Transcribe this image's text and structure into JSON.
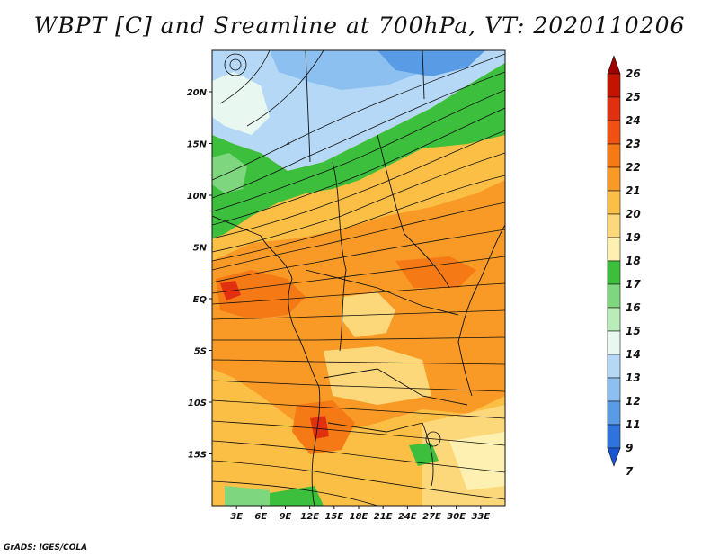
{
  "title": "WBPT [C] and Sreamline at 700hPa, VT: 2020110206",
  "credit": "GrADS: IGES/COLA",
  "map": {
    "lon_range": [
      0,
      36
    ],
    "lat_range": [
      -20,
      24
    ],
    "lon_ticks": [
      "3E",
      "6E",
      "9E",
      "12E",
      "15E",
      "18E",
      "21E",
      "24E",
      "27E",
      "30E",
      "33E"
    ],
    "lon_tick_values": [
      3,
      6,
      9,
      12,
      15,
      18,
      21,
      24,
      27,
      30,
      33
    ],
    "lat_ticks": [
      "20N",
      "15N",
      "10N",
      "5N",
      "EQ",
      "5S",
      "10S",
      "15S"
    ],
    "lat_tick_values": [
      20,
      15,
      10,
      5,
      0,
      -5,
      -10,
      -15
    ]
  },
  "colorbar": {
    "levels": [
      "26",
      "25",
      "24",
      "23",
      "22",
      "21",
      "20",
      "19",
      "18",
      "17",
      "16",
      "15",
      "14",
      "13",
      "12",
      "11",
      "9",
      "7"
    ],
    "colors": [
      "#a00000",
      "#c41400",
      "#e03010",
      "#f05010",
      "#f57a15",
      "#f89a25",
      "#fbbf45",
      "#fdd87a",
      "#fdf0b0",
      "#3cbf3c",
      "#7ed67e",
      "#b8ecb8",
      "#e8f8f0",
      "#b4d8f5",
      "#8cc0f0",
      "#5a9be6",
      "#2f74de",
      "#1a55d0"
    ]
  }
}
